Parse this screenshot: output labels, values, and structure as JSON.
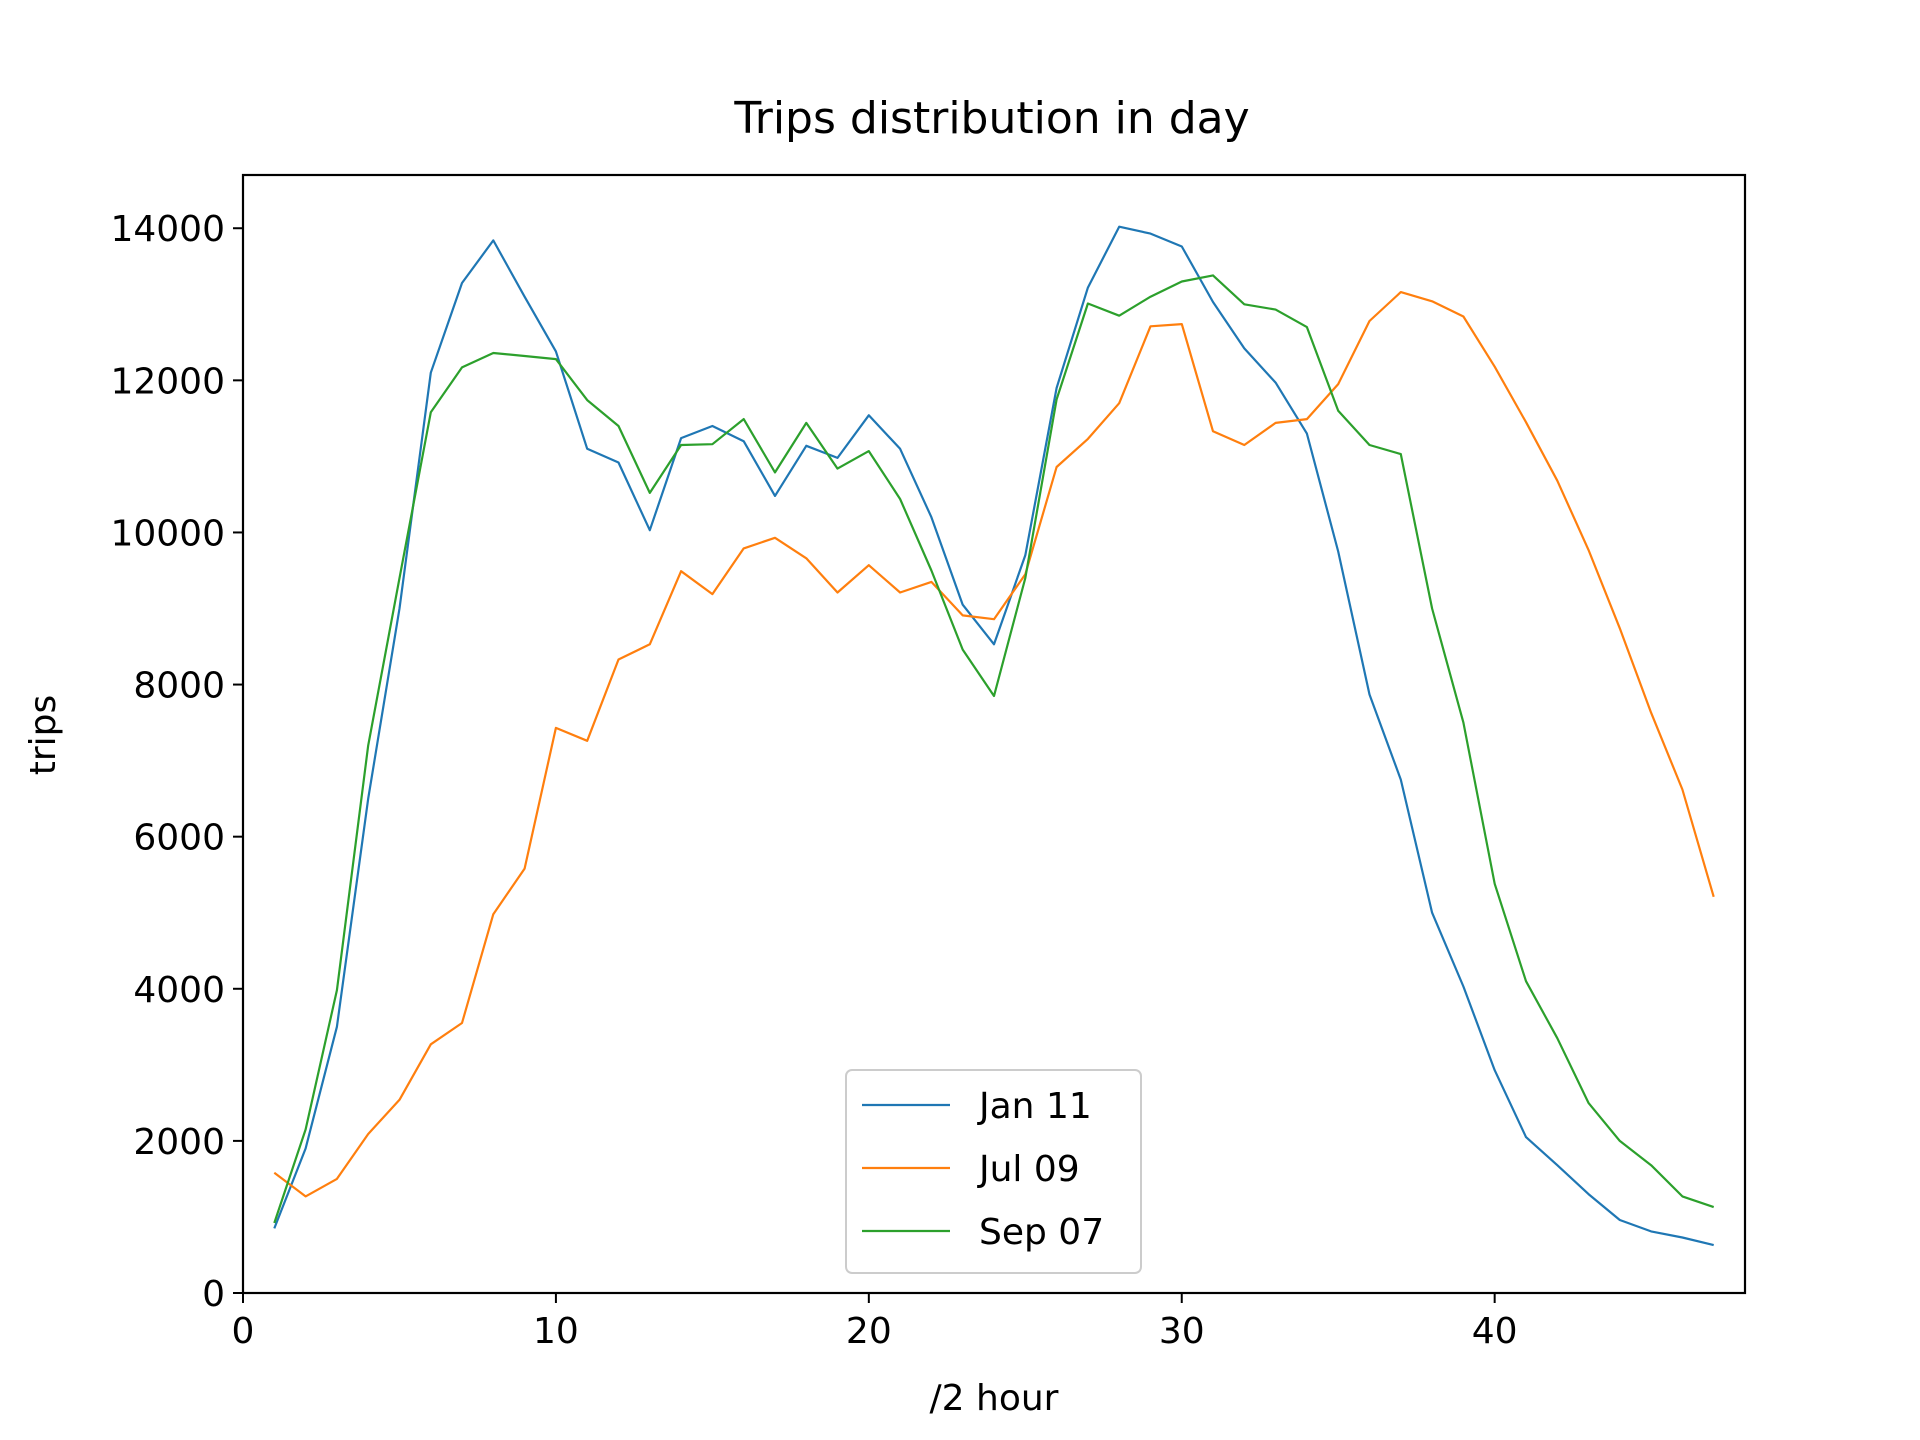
{
  "chart_data": {
    "type": "line",
    "title": "Trips distribution in day",
    "xlabel": "/2 hour",
    "ylabel": "trips",
    "xlim": [
      0,
      48
    ],
    "ylim": [
      0,
      14700
    ],
    "xticks": [
      0,
      10,
      20,
      30,
      40
    ],
    "yticks": [
      0,
      2000,
      4000,
      6000,
      8000,
      10000,
      12000,
      14000
    ],
    "grid": false,
    "legend": "lower center",
    "x": [
      1,
      2,
      3,
      4,
      5,
      6,
      7,
      8,
      9,
      10,
      11,
      12,
      13,
      14,
      15,
      16,
      17,
      18,
      19,
      20,
      21,
      22,
      23,
      24,
      25,
      26,
      27,
      28,
      29,
      30,
      31,
      32,
      33,
      34,
      35,
      36,
      37,
      38,
      39,
      40,
      41,
      42,
      43,
      44,
      45,
      46,
      47
    ],
    "series": [
      {
        "name": "Jan 11",
        "color": "#1f77b4",
        "values": [
          850,
          1900,
          3500,
          6500,
          9000,
          12100,
          13280,
          13840,
          13100,
          12380,
          11100,
          10920,
          10030,
          11240,
          11400,
          11200,
          10480,
          11140,
          10980,
          11540,
          11100,
          10200,
          9050,
          8530,
          9700,
          11900,
          13220,
          14020,
          13930,
          13760,
          13030,
          12420,
          11970,
          11300,
          9750,
          7870,
          6750,
          5000,
          4030,
          2930,
          2050,
          1680,
          1300,
          960,
          810,
          730,
          630
        ]
      },
      {
        "name": "Jul 09",
        "color": "#ff7f0e",
        "values": [
          1580,
          1270,
          1500,
          2090,
          2540,
          3270,
          3550,
          4980,
          5580,
          7430,
          7260,
          8330,
          8530,
          9490,
          9190,
          9790,
          9930,
          9660,
          9210,
          9570,
          9210,
          9350,
          8910,
          8860,
          9450,
          10860,
          11230,
          11700,
          12710,
          12740,
          11330,
          11150,
          11440,
          11490,
          11950,
          12780,
          13160,
          13040,
          12840,
          12180,
          11450,
          10680,
          9770,
          8740,
          7630,
          6620,
          5210
        ]
      },
      {
        "name": "Sep 07",
        "color": "#2ca02c",
        "values": [
          920,
          2150,
          3980,
          7200,
          9400,
          11580,
          12170,
          12360,
          12320,
          12280,
          11740,
          11400,
          10520,
          11150,
          11160,
          11490,
          10790,
          11440,
          10840,
          11070,
          10440,
          9500,
          8460,
          7850,
          9400,
          11750,
          13010,
          12850,
          13100,
          13300,
          13380,
          13000,
          12930,
          12700,
          11600,
          11150,
          11030,
          9000,
          7500,
          5380,
          4100,
          3350,
          2500,
          2000,
          1680,
          1270,
          1130
        ]
      }
    ]
  }
}
